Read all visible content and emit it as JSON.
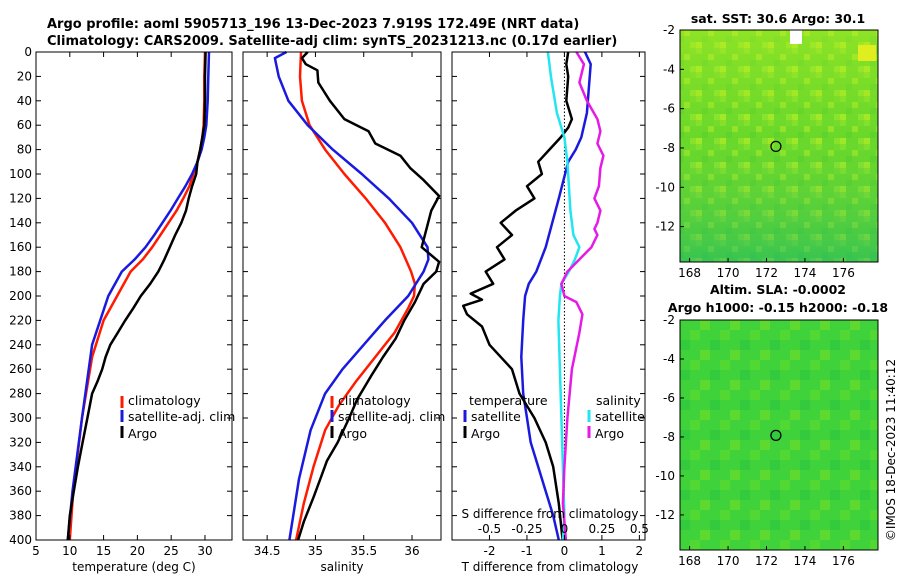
{
  "header": {
    "line1": "Argo profile: aoml 5905713_196 13-Dec-2023 7.919S 172.49E (NRT data)",
    "line2": "Climatology: CARS2009. Satellite-adj clim: synTS_20231213.nc (0.17d earlier)"
  },
  "credit": "©IMOS 18-Dec-2023 11:40:12",
  "colors": {
    "climatology": "#ff1a00",
    "satellite": "#1a1adf",
    "argo": "#000000",
    "salinity_satellite": "#22e6ef",
    "salinity_argo": "#e61ae6",
    "map_green": "#20d020",
    "map_yellow": "#d8f020"
  },
  "chart_data": [
    {
      "id": "temperature_panel",
      "type": "line",
      "xlabel": "temperature (deg C)",
      "ylabel": "",
      "xlim": [
        5,
        34
      ],
      "ylim": [
        400,
        0
      ],
      "xticks": [
        5,
        10,
        15,
        20,
        25,
        30
      ],
      "yticks": [
        0,
        20,
        40,
        60,
        80,
        100,
        120,
        140,
        160,
        180,
        200,
        220,
        240,
        260,
        280,
        300,
        320,
        340,
        360,
        380,
        400
      ],
      "legend": [
        "climatology",
        "satellite-adj. clim",
        "Argo"
      ],
      "series": [
        {
          "name": "climatology",
          "color_key": "climatology",
          "x": [
            30.0,
            29.9,
            29.9,
            29.8,
            29.6,
            29.3,
            28.9,
            28.3,
            27.7,
            26.8,
            25.8,
            24.6,
            23.4,
            22.2,
            20.8,
            19.0,
            17.0,
            15.0,
            13.3,
            11.8,
            10.5,
            10.0
          ],
          "y": [
            0,
            20,
            40,
            60,
            70,
            80,
            90,
            100,
            110,
            120,
            130,
            140,
            150,
            160,
            170,
            180,
            200,
            220,
            250,
            300,
            360,
            400
          ]
        },
        {
          "name": "satellite-adj. clim",
          "color_key": "satellite",
          "x": [
            30.6,
            30.5,
            30.4,
            30.2,
            29.9,
            29.5,
            28.9,
            28.1,
            27.1,
            26.0,
            24.9,
            23.7,
            22.5,
            21.2,
            19.6,
            17.7,
            15.7,
            13.3,
            11.8,
            10.4,
            9.7
          ],
          "y": [
            0,
            20,
            40,
            60,
            70,
            80,
            90,
            100,
            110,
            120,
            130,
            140,
            150,
            160,
            170,
            180,
            200,
            240,
            300,
            360,
            400
          ]
        },
        {
          "name": "Argo",
          "color_key": "argo",
          "x": [
            30.1,
            30.0,
            30.0,
            29.9,
            29.6,
            29.3,
            28.9,
            28.7,
            28.1,
            27.6,
            27.2,
            26.5,
            25.6,
            24.8,
            24.0,
            23.1,
            21.9,
            20.5,
            19.4,
            18.2,
            17.1,
            16.0,
            15.3,
            14.8,
            14.1,
            13.3,
            12.6,
            11.9,
            11.2,
            10.6,
            10.0,
            9.7
          ],
          "y": [
            0,
            20,
            40,
            60,
            70,
            80,
            90,
            100,
            110,
            120,
            130,
            140,
            150,
            160,
            170,
            180,
            190,
            200,
            210,
            220,
            230,
            240,
            250,
            260,
            270,
            280,
            300,
            320,
            340,
            360,
            380,
            400
          ]
        }
      ]
    },
    {
      "id": "salinity_panel",
      "type": "line",
      "xlabel": "salinity",
      "xlim": [
        34.25,
        36.3
      ],
      "ylim": [
        400,
        0
      ],
      "xticks": [
        34.5,
        35,
        35.5,
        36
      ],
      "xticklabels": [
        "34.5",
        "35",
        "35.5",
        "36"
      ],
      "legend": [
        "climatology",
        "satellite-adj. clim",
        "Argo"
      ],
      "series": [
        {
          "name": "climatology",
          "color_key": "climatology",
          "x": [
            34.85,
            34.84,
            34.86,
            34.94,
            35.1,
            35.3,
            35.52,
            35.72,
            35.88,
            35.99,
            36.03,
            36.02,
            35.96,
            35.82,
            35.62,
            35.42,
            35.24,
            35.1,
            34.98,
            34.88,
            34.8
          ],
          "y": [
            0,
            20,
            40,
            60,
            80,
            100,
            120,
            140,
            160,
            180,
            190,
            200,
            210,
            230,
            250,
            270,
            290,
            310,
            340,
            370,
            400
          ]
        },
        {
          "name": "satellite-adj. clim",
          "color_key": "satellite",
          "x": [
            34.7,
            34.58,
            34.62,
            34.72,
            34.92,
            35.18,
            35.48,
            35.76,
            36.0,
            36.16,
            36.17,
            36.12,
            35.96,
            35.72,
            35.5,
            35.28,
            35.1,
            34.95,
            34.83,
            34.73
          ],
          "y": [
            0,
            5,
            20,
            40,
            60,
            80,
            100,
            120,
            140,
            160,
            170,
            180,
            200,
            220,
            240,
            260,
            280,
            310,
            350,
            400
          ]
        },
        {
          "name": "Argo",
          "color_key": "argo",
          "x": [
            34.92,
            34.86,
            34.9,
            35.02,
            35.03,
            35.15,
            35.3,
            35.55,
            35.62,
            35.88,
            35.98,
            36.12,
            36.28,
            36.2,
            36.1,
            36.28,
            36.25,
            36.12,
            36.03,
            35.92,
            35.83,
            35.7,
            35.58,
            35.43,
            35.35,
            35.23,
            35.12,
            35.05,
            34.98,
            34.88,
            34.82
          ],
          "y": [
            0,
            5,
            10,
            15,
            25,
            40,
            55,
            65,
            75,
            85,
            95,
            105,
            118,
            130,
            160,
            172,
            180,
            190,
            205,
            220,
            235,
            250,
            265,
            285,
            300,
            320,
            335,
            350,
            365,
            385,
            400
          ]
        }
      ]
    },
    {
      "id": "difference_panel",
      "type": "line",
      "xlabel": "T difference from climatology",
      "top_xlabel": "S difference from climatology",
      "xlim": [
        -3,
        2.15
      ],
      "ylim": [
        400,
        0
      ],
      "xticks": [
        -2,
        -1,
        0,
        1,
        2
      ],
      "top_xticks": [
        -0.5,
        -0.25,
        0,
        0.25,
        0.5
      ],
      "top_xticklabels": [
        "-0.5",
        "-0.25",
        "0",
        "0.25",
        "0.5"
      ],
      "s_scale": 4,
      "legend_left": {
        "title": "temperature",
        "entries": [
          "satellite",
          "Argo"
        ]
      },
      "legend_right": {
        "title": "salinity",
        "entries": [
          "satellite",
          "Argo"
        ]
      },
      "series": [
        {
          "name": "temperature satellite",
          "color_key": "satellite",
          "axis": "T",
          "x": [
            0.55,
            0.7,
            0.65,
            0.6,
            0.45,
            0.3,
            0.1,
            -0.15,
            -0.5,
            -0.75,
            -0.95,
            -1.05,
            -1.1,
            -1.15,
            -1.1,
            -1.0,
            -0.9,
            -0.7,
            -0.5,
            -0.3,
            -0.15
          ],
          "y": [
            0,
            10,
            30,
            50,
            70,
            80,
            90,
            120,
            160,
            180,
            190,
            200,
            220,
            250,
            280,
            300,
            320,
            340,
            360,
            380,
            400
          ]
        },
        {
          "name": "temperature Argo",
          "color_key": "argo",
          "axis": "T",
          "x": [
            0.1,
            0.05,
            0.1,
            0.05,
            0.2,
            0.1,
            -0.1,
            -0.4,
            -0.7,
            -0.6,
            -1.0,
            -0.8,
            -1.3,
            -1.7,
            -1.4,
            -1.8,
            -1.6,
            -2.1,
            -1.9,
            -2.5,
            -2.2,
            -2.7,
            -2.6,
            -2.2,
            -2.0,
            -1.4,
            -1.2,
            -0.8,
            -0.5,
            -0.3,
            -0.15,
            -0.05
          ],
          "y": [
            0,
            10,
            20,
            40,
            55,
            62,
            70,
            80,
            90,
            100,
            110,
            120,
            130,
            140,
            150,
            160,
            170,
            180,
            190,
            198,
            203,
            208,
            215,
            225,
            240,
            260,
            280,
            300,
            320,
            340,
            370,
            400
          ]
        },
        {
          "name": "salinity satellite",
          "color_key": "salinity_satellite",
          "axis": "S",
          "x": [
            -0.11,
            -0.09,
            -0.05,
            0.0,
            0.02,
            0.03,
            0.04,
            0.05,
            0.06,
            0.08,
            0.1,
            0.07,
            0.03,
            -0.02,
            -0.03,
            -0.04,
            -0.03,
            -0.02,
            -0.01,
            0.0,
            -0.01
          ],
          "y": [
            0,
            20,
            50,
            70,
            90,
            110,
            130,
            140,
            150,
            155,
            160,
            170,
            180,
            190,
            200,
            220,
            260,
            300,
            340,
            380,
            400
          ]
        },
        {
          "name": "salinity Argo",
          "color_key": "salinity_argo",
          "axis": "S",
          "x": [
            0.08,
            0.13,
            0.1,
            0.15,
            0.22,
            0.24,
            0.22,
            0.26,
            0.24,
            0.23,
            0.2,
            0.24,
            0.22,
            0.2,
            0.22,
            0.18,
            0.1,
            0.02,
            -0.02,
            0.0,
            0.08,
            0.12,
            0.1,
            0.05,
            0.02,
            0.0,
            -0.01,
            0.01
          ],
          "y": [
            0,
            10,
            25,
            40,
            55,
            65,
            75,
            85,
            95,
            110,
            120,
            130,
            140,
            145,
            150,
            160,
            170,
            180,
            190,
            200,
            205,
            215,
            230,
            260,
            300,
            340,
            370,
            400
          ]
        }
      ]
    },
    {
      "id": "sst_map",
      "type": "heatmap",
      "title": "sat. SST: 30.6 Argo: 30.1",
      "xlim": [
        167.5,
        177.8
      ],
      "ylim": [
        -13.8,
        -2
      ],
      "xticks": [
        168,
        170,
        172,
        174,
        176
      ],
      "yticks": [
        -2,
        -4,
        -6,
        -8,
        -10,
        -12
      ],
      "argo_position": {
        "lon": 172.49,
        "lat": -7.919
      }
    },
    {
      "id": "sla_map",
      "type": "heatmap",
      "title": "Altim. SLA: -0.0002",
      "subtitle": "Argo h1000: -0.15 h2000: -0.18",
      "xlim": [
        167.5,
        177.8
      ],
      "ylim": [
        -13.8,
        -2
      ],
      "xticks": [
        168,
        170,
        172,
        174,
        176
      ],
      "yticks": [
        -2,
        -4,
        -6,
        -8,
        -10,
        -12
      ],
      "argo_position": {
        "lon": 172.49,
        "lat": -7.919
      }
    }
  ]
}
